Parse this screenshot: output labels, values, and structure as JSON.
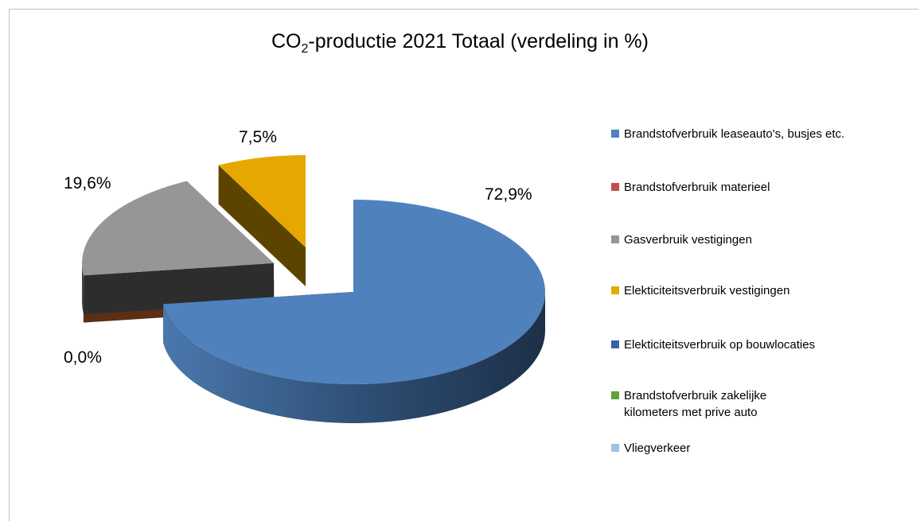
{
  "chart_data": {
    "type": "pie",
    "title_prefix": "CO",
    "title_subscript": "2",
    "title_suffix": "-productie 2021 Totaal (verdeling in %)",
    "series": [
      {
        "name": "",
        "slices": [
          {
            "label": "Brandstofverbruik leaseauto's, busjes etc.",
            "value": 72.9,
            "data_label": "72,9%",
            "color": "#4f81bd"
          },
          {
            "label": "Brandstofverbruik materieel",
            "value": 0.0,
            "data_label": "0,0%",
            "color": "#c0504d"
          },
          {
            "label": "Gasverbruik vestigingen",
            "value": 19.6,
            "data_label": "19,6%",
            "color": "#969696"
          },
          {
            "label": "Elekticiteitsverbruik vestigingen",
            "value": 7.5,
            "data_label": "7,5%",
            "color": "#e6a800"
          },
          {
            "label": "Elekticiteitsverbruik op bouwlocaties",
            "value": 0.0,
            "data_label": "",
            "color": "#3d5fa8"
          },
          {
            "label": "Brandstofverbruik zakelijke kilometers met prive auto",
            "value": 0.0,
            "data_label": "",
            "color": "#62a03d"
          },
          {
            "label": "Vliegverkeer",
            "value": 0.0,
            "data_label": "",
            "color": "#9dc3e6"
          }
        ]
      }
    ],
    "legend_position": "right",
    "style": "3d-exploded"
  }
}
